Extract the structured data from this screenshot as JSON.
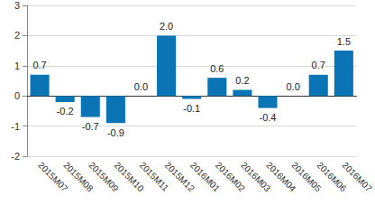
{
  "chart_data": {
    "type": "bar",
    "categories": [
      "2015M07",
      "2015M08",
      "2015M09",
      "2015M10",
      "2015M11",
      "2015M12",
      "2016M01",
      "2016M02",
      "2016M03",
      "2016M04",
      "2016M05",
      "2016M06",
      "2016M07"
    ],
    "values": [
      0.7,
      -0.2,
      -0.7,
      -0.9,
      0.0,
      2.0,
      -0.1,
      0.6,
      0.2,
      -0.4,
      0.0,
      0.7,
      1.5
    ],
    "value_labels": [
      "0.7",
      "-0.2",
      "-0.7",
      "-0.9",
      "0.0",
      "2.0",
      "-0.1",
      "0.6",
      "0.2",
      "-0.4",
      "0.0",
      "0.7",
      "1.5"
    ],
    "color": "#0a74b4",
    "ylim": [
      -2,
      3
    ],
    "yticks": [
      -2,
      -1,
      0,
      1,
      2,
      3
    ],
    "grid": true,
    "data_labels": true
  }
}
